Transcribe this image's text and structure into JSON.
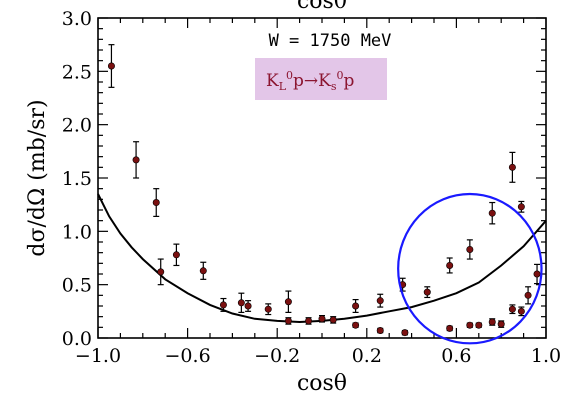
{
  "chart_data": {
    "type": "scatter",
    "top_title_fragment": "cosθ",
    "xlabel": "cosθ",
    "ylabel": "dσ/dΩ (mb/sr)",
    "xlim": [
      -1.0,
      1.0
    ],
    "ylim": [
      0.0,
      3.0
    ],
    "x_ticks": [
      "−1.0",
      "−0.6",
      "−0.2",
      "0.2",
      "0.6",
      "1.0"
    ],
    "x_tick_values": [
      -1.0,
      -0.6,
      -0.2,
      0.2,
      0.6,
      1.0
    ],
    "y_ticks": [
      "0.0",
      "0.5",
      "1.0",
      "1.5",
      "2.0",
      "2.5",
      "3.0"
    ],
    "y_tick_values": [
      0.0,
      0.5,
      1.0,
      1.5,
      2.0,
      2.5,
      3.0
    ],
    "annotation": "W = 1750 MeV",
    "reaction_parts": [
      "K",
      "L",
      "0",
      "p→K",
      "s",
      "0",
      "p"
    ],
    "colors": {
      "points": "#7a1010",
      "curve": "#000000",
      "reaction_box": "#e3c6e8",
      "reaction_text": "#8b1530",
      "circle": "#1a1aff"
    },
    "series": [
      {
        "values": [
          {
            "x": -0.94,
            "y": 2.55,
            "err": 0.2
          },
          {
            "x": -0.83,
            "y": 1.67,
            "err": 0.17
          },
          {
            "x": -0.74,
            "y": 1.27,
            "err": 0.13
          },
          {
            "x": -0.72,
            "y": 0.62,
            "err": 0.12
          },
          {
            "x": -0.65,
            "y": 0.78,
            "err": 0.1
          },
          {
            "x": -0.53,
            "y": 0.63,
            "err": 0.08
          },
          {
            "x": -0.44,
            "y": 0.31,
            "err": 0.06
          },
          {
            "x": -0.36,
            "y": 0.33,
            "err": 0.09
          },
          {
            "x": -0.33,
            "y": 0.3,
            "err": 0.05
          },
          {
            "x": -0.24,
            "y": 0.27,
            "err": 0.05
          },
          {
            "x": -0.15,
            "y": 0.34,
            "err": 0.1
          },
          {
            "x": -0.15,
            "y": 0.16,
            "err": 0.03
          },
          {
            "x": -0.06,
            "y": 0.16,
            "err": 0.03
          },
          {
            "x": 0.0,
            "y": 0.18,
            "err": 0.03
          },
          {
            "x": 0.05,
            "y": 0.17,
            "err": 0.03
          },
          {
            "x": 0.15,
            "y": 0.3,
            "err": 0.06
          },
          {
            "x": 0.15,
            "y": 0.12,
            "err": 0.02
          },
          {
            "x": 0.26,
            "y": 0.35,
            "err": 0.06
          },
          {
            "x": 0.26,
            "y": 0.07,
            "err": 0.02
          },
          {
            "x": 0.36,
            "y": 0.5,
            "err": 0.06
          },
          {
            "x": 0.37,
            "y": 0.05,
            "err": 0.02
          },
          {
            "x": 0.47,
            "y": 0.43,
            "err": 0.05
          },
          {
            "x": 0.57,
            "y": 0.68,
            "err": 0.07
          },
          {
            "x": 0.57,
            "y": 0.09,
            "err": 0.02
          },
          {
            "x": 0.66,
            "y": 0.83,
            "err": 0.09
          },
          {
            "x": 0.66,
            "y": 0.12,
            "err": 0.02
          },
          {
            "x": 0.7,
            "y": 0.12,
            "err": 0.02
          },
          {
            "x": 0.76,
            "y": 1.17,
            "err": 0.1
          },
          {
            "x": 0.76,
            "y": 0.15,
            "err": 0.03
          },
          {
            "x": 0.8,
            "y": 0.13,
            "err": 0.03
          },
          {
            "x": 0.85,
            "y": 1.6,
            "err": 0.14
          },
          {
            "x": 0.85,
            "y": 0.27,
            "err": 0.04
          },
          {
            "x": 0.89,
            "y": 1.23,
            "err": 0.05
          },
          {
            "x": 0.89,
            "y": 0.25,
            "err": 0.04
          },
          {
            "x": 0.92,
            "y": 0.4,
            "err": 0.08
          },
          {
            "x": 0.96,
            "y": 0.6,
            "err": 0.09
          }
        ]
      }
    ],
    "curve": [
      {
        "x": -1.0,
        "y": 1.35
      },
      {
        "x": -0.95,
        "y": 1.14
      },
      {
        "x": -0.9,
        "y": 0.98
      },
      {
        "x": -0.85,
        "y": 0.85
      },
      {
        "x": -0.8,
        "y": 0.74
      },
      {
        "x": -0.7,
        "y": 0.55
      },
      {
        "x": -0.6,
        "y": 0.42
      },
      {
        "x": -0.5,
        "y": 0.31
      },
      {
        "x": -0.4,
        "y": 0.23
      },
      {
        "x": -0.3,
        "y": 0.18
      },
      {
        "x": -0.2,
        "y": 0.16
      },
      {
        "x": -0.1,
        "y": 0.15
      },
      {
        "x": 0.0,
        "y": 0.16
      },
      {
        "x": 0.1,
        "y": 0.18
      },
      {
        "x": 0.2,
        "y": 0.21
      },
      {
        "x": 0.3,
        "y": 0.25
      },
      {
        "x": 0.4,
        "y": 0.29
      },
      {
        "x": 0.5,
        "y": 0.35
      },
      {
        "x": 0.6,
        "y": 0.42
      },
      {
        "x": 0.7,
        "y": 0.52
      },
      {
        "x": 0.8,
        "y": 0.68
      },
      {
        "x": 0.9,
        "y": 0.86
      },
      {
        "x": 0.95,
        "y": 0.98
      },
      {
        "x": 1.0,
        "y": 1.1
      }
    ],
    "highlight_circle": {
      "x": 0.66,
      "y": 0.65,
      "rx": 0.32,
      "ry": 0.7
    }
  }
}
